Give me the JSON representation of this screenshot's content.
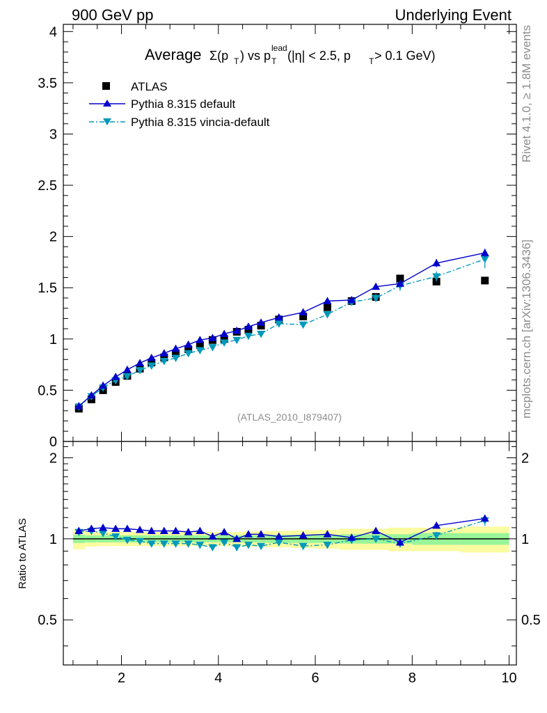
{
  "header": {
    "left": "900 GeV pp",
    "right": "Underlying Event"
  },
  "side": {
    "top": "Rivet 4.1.0, ≥ 1.8M events",
    "bottom": "mcplots.cern.ch [arXiv:1306.3436]"
  },
  "watermark": "(ATLAS_2010_I879407)",
  "colors": {
    "atlas": "#000000",
    "default": "#0000cc",
    "vincia": "#0099bb",
    "band_inner": "#98f598",
    "band_outer": "#fbfba0"
  },
  "chart_data": [
    {
      "type": "scatter",
      "title": "Average Σ(pT) vs pT lead (|η| < 2.5, pT > 0.1 GeV)",
      "title_parts": {
        "average": "Average",
        "sigma": "Σ(p",
        "sub_T": "T",
        "vs": ") vs p",
        "lead": "lead",
        "cuts_a": " (|η| < 2.5, p",
        "cuts_b": " > 0.1 GeV)"
      },
      "xlim": [
        0.8,
        10.15
      ],
      "ylim": [
        0,
        4.07
      ],
      "yticks": [
        0,
        0.5,
        1,
        1.5,
        2,
        2.5,
        3,
        3.5,
        4
      ],
      "ytick_labels": [
        "0",
        "0.5",
        "1",
        "1.5",
        "2",
        "2.5",
        "3",
        "3.5",
        "4"
      ],
      "legend": [
        "ATLAS",
        "Pythia 8.315 default",
        "Pythia 8.315 vincia-default"
      ],
      "series": [
        {
          "name": "ATLAS",
          "x": [
            1.12,
            1.38,
            1.62,
            1.88,
            2.12,
            2.38,
            2.62,
            2.88,
            3.12,
            3.38,
            3.62,
            3.88,
            4.12,
            4.38,
            4.62,
            4.88,
            5.25,
            5.75,
            6.25,
            6.75,
            7.25,
            7.75,
            8.5,
            9.5
          ],
          "values": [
            0.32,
            0.41,
            0.5,
            0.58,
            0.64,
            0.71,
            0.77,
            0.82,
            0.86,
            0.9,
            0.94,
            0.99,
            1.0,
            1.07,
            1.09,
            1.13,
            1.19,
            1.22,
            1.31,
            1.37,
            1.41,
            1.59,
            1.56,
            1.57
          ]
        },
        {
          "name": "Pythia 8.315 default",
          "x": [
            1.12,
            1.38,
            1.62,
            1.88,
            2.12,
            2.38,
            2.62,
            2.88,
            3.12,
            3.38,
            3.62,
            3.88,
            4.12,
            4.38,
            4.62,
            4.88,
            5.25,
            5.75,
            6.25,
            6.75,
            7.25,
            7.75,
            8.5,
            9.5
          ],
          "values": [
            0.345,
            0.45,
            0.545,
            0.63,
            0.7,
            0.765,
            0.815,
            0.86,
            0.905,
            0.945,
            0.99,
            1.01,
            1.05,
            1.08,
            1.12,
            1.16,
            1.21,
            1.26,
            1.37,
            1.38,
            1.51,
            1.54,
            1.74,
            1.84
          ],
          "errors": [
            0.01,
            0.01,
            0.01,
            0.01,
            0.01,
            0.01,
            0.01,
            0.01,
            0.01,
            0.01,
            0.01,
            0.01,
            0.01,
            0.01,
            0.01,
            0.015,
            0.015,
            0.02,
            0.02,
            0.02,
            0.03,
            0.03,
            0.04,
            0.04
          ]
        },
        {
          "name": "Pythia 8.315 vincia-default",
          "x": [
            1.12,
            1.38,
            1.62,
            1.88,
            2.12,
            2.38,
            2.62,
            2.88,
            3.12,
            3.38,
            3.62,
            3.88,
            4.12,
            4.38,
            4.62,
            4.88,
            5.25,
            5.75,
            6.25,
            6.75,
            7.25,
            7.75,
            8.5,
            9.5
          ],
          "values": [
            0.34,
            0.44,
            0.525,
            0.595,
            0.635,
            0.695,
            0.74,
            0.785,
            0.815,
            0.86,
            0.89,
            0.92,
            0.965,
            0.99,
            1.03,
            1.05,
            1.15,
            1.14,
            1.24,
            1.36,
            1.4,
            1.52,
            1.61,
            1.78
          ],
          "errors": [
            0.01,
            0.01,
            0.01,
            0.01,
            0.01,
            0.01,
            0.01,
            0.01,
            0.01,
            0.01,
            0.01,
            0.01,
            0.01,
            0.01,
            0.01,
            0.015,
            0.015,
            0.02,
            0.02,
            0.03,
            0.04,
            0.05,
            0.05,
            0.09
          ]
        }
      ]
    },
    {
      "type": "scatter",
      "ylabel": "Ratio to ATLAS",
      "xlim": [
        0.8,
        10.15
      ],
      "ylim": [
        0.34,
        2.3
      ],
      "yticks": [
        0.5,
        1,
        2
      ],
      "ytick_labels": [
        "0.5",
        "1",
        "2"
      ],
      "xticks": [
        2,
        4,
        6,
        8,
        10
      ],
      "xtick_labels": [
        "2",
        "4",
        "6",
        "8",
        "10"
      ],
      "band_edges": [
        1.0,
        1.25,
        1.5,
        1.75,
        2.0,
        2.25,
        2.5,
        2.75,
        3.0,
        3.25,
        3.5,
        3.75,
        4.0,
        4.25,
        4.5,
        4.75,
        5.0,
        5.5,
        6.0,
        6.5,
        7.0,
        7.5,
        8.0,
        9.0,
        10.0
      ],
      "band_inner": [
        0.035,
        0.03,
        0.03,
        0.03,
        0.03,
        0.03,
        0.03,
        0.03,
        0.03,
        0.03,
        0.03,
        0.03,
        0.03,
        0.03,
        0.03,
        0.03,
        0.035,
        0.035,
        0.035,
        0.04,
        0.04,
        0.04,
        0.05,
        0.05
      ],
      "band_outer": [
        0.085,
        0.065,
        0.06,
        0.06,
        0.06,
        0.06,
        0.06,
        0.06,
        0.06,
        0.06,
        0.06,
        0.06,
        0.06,
        0.06,
        0.065,
        0.065,
        0.07,
        0.075,
        0.08,
        0.09,
        0.09,
        0.1,
        0.1,
        0.11
      ],
      "series": [
        {
          "name": "Pythia 8.315 default",
          "x": [
            1.12,
            1.38,
            1.62,
            1.88,
            2.12,
            2.38,
            2.62,
            2.88,
            3.12,
            3.38,
            3.62,
            3.88,
            4.12,
            4.38,
            4.62,
            4.88,
            5.25,
            5.75,
            6.25,
            6.75,
            7.25,
            7.75,
            8.5,
            9.5
          ],
          "values": [
            1.07,
            1.09,
            1.1,
            1.09,
            1.09,
            1.08,
            1.07,
            1.07,
            1.07,
            1.06,
            1.07,
            1.02,
            1.06,
            1.0,
            1.04,
            1.04,
            1.02,
            1.03,
            1.04,
            1.01,
            1.07,
            0.97,
            1.12,
            1.19
          ],
          "errors": [
            0.01,
            0.01,
            0.01,
            0.01,
            0.01,
            0.01,
            0.01,
            0.01,
            0.01,
            0.01,
            0.01,
            0.01,
            0.01,
            0.01,
            0.01,
            0.01,
            0.01,
            0.01,
            0.015,
            0.015,
            0.02,
            0.02,
            0.025,
            0.03
          ]
        },
        {
          "name": "Pythia 8.315 vincia-default",
          "x": [
            1.12,
            1.38,
            1.62,
            1.88,
            2.12,
            2.38,
            2.62,
            2.88,
            3.12,
            3.38,
            3.62,
            3.88,
            4.12,
            4.38,
            4.62,
            4.88,
            5.25,
            5.75,
            6.25,
            6.75,
            7.25,
            7.75,
            8.5,
            9.5
          ],
          "values": [
            1.06,
            1.07,
            1.05,
            1.02,
            0.99,
            0.98,
            0.96,
            0.96,
            0.96,
            0.96,
            0.95,
            0.93,
            0.97,
            0.93,
            0.95,
            0.94,
            0.97,
            0.94,
            0.95,
            0.99,
            1.0,
            0.96,
            1.03,
            1.17
          ],
          "errors": [
            0.01,
            0.01,
            0.01,
            0.01,
            0.01,
            0.01,
            0.01,
            0.01,
            0.01,
            0.01,
            0.01,
            0.01,
            0.01,
            0.01,
            0.01,
            0.015,
            0.015,
            0.015,
            0.02,
            0.02,
            0.03,
            0.03,
            0.03,
            0.05
          ]
        }
      ]
    }
  ]
}
